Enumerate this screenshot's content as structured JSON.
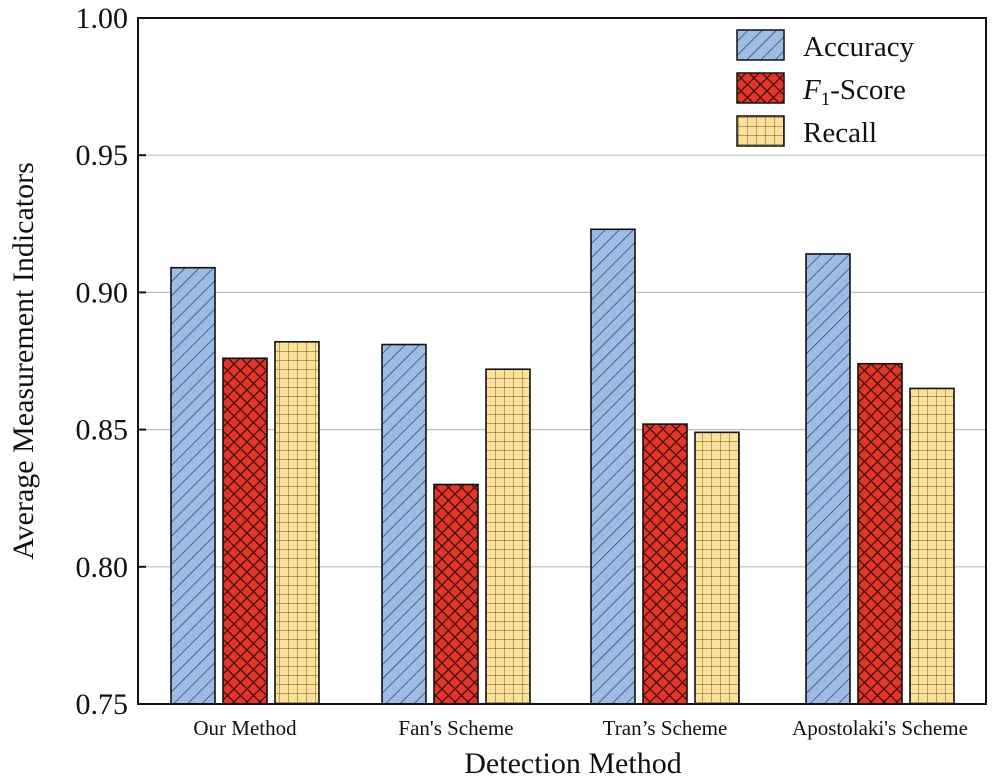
{
  "chart_data": {
    "type": "bar",
    "title": "",
    "xlabel": "Detection Method",
    "ylabel": "Average Measurement Indicators",
    "categories": [
      "Our Method",
      "Fan's Scheme",
      "Tran’s Scheme",
      "Apostolaki's Scheme"
    ],
    "series": [
      {
        "name": "Accuracy",
        "values": [
          0.909,
          0.881,
          0.923,
          0.914
        ],
        "color": "#9dbbe3",
        "pattern": "diagonal-hatch"
      },
      {
        "name": "F1-Score",
        "values": [
          0.876,
          0.83,
          0.852,
          0.874
        ],
        "color": "#e3362b",
        "pattern": "cross-hatch"
      },
      {
        "name": "Recall",
        "values": [
          0.882,
          0.872,
          0.849,
          0.865
        ],
        "color": "#fbe19a",
        "pattern": "grid"
      }
    ],
    "ylim": [
      0.75,
      1.0
    ],
    "yticks": [
      "0.75",
      "0.80",
      "0.85",
      "0.90",
      "0.95",
      "1.00"
    ],
    "ytick_values": [
      0.75,
      0.8,
      0.85,
      0.9,
      0.95,
      1.0
    ],
    "grid": true,
    "legend": {
      "position": "top-right",
      "labels": {
        "accuracy": "Accuracy",
        "f1_italic": "F",
        "f1_sub": "1",
        "f1_rest": "-Score",
        "recall": "Recall"
      }
    }
  }
}
